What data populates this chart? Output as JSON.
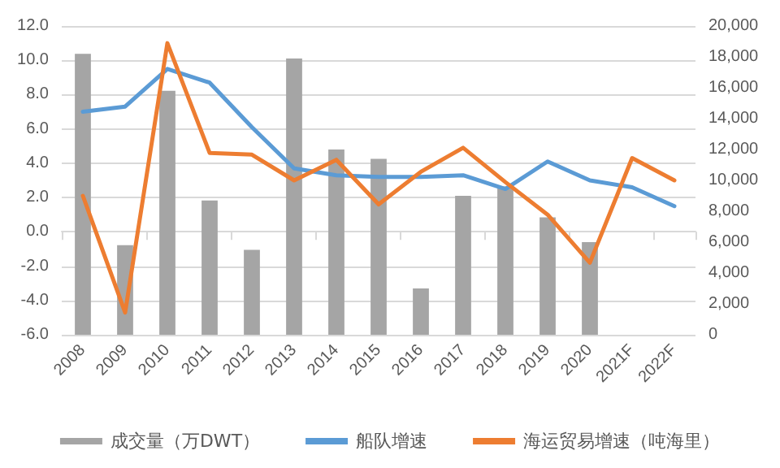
{
  "chart_data": {
    "type": "bar",
    "categories": [
      "2008",
      "2009",
      "2010",
      "2011",
      "2012",
      "2013",
      "2014",
      "2015",
      "2016",
      "2017",
      "2018",
      "2019",
      "2020",
      "2021F",
      "2022F"
    ],
    "series": [
      {
        "name": "成交量（万DWT）",
        "axis": "y2",
        "color": "#a5a5a5",
        "values": [
          18200,
          5800,
          15800,
          8700,
          5500,
          17900,
          12000,
          11400,
          3000,
          9000,
          9600,
          7600,
          6000,
          null,
          null
        ]
      },
      {
        "name": "船队增速",
        "type": "line",
        "color": "#5b9bd5",
        "values": [
          7.0,
          7.3,
          9.5,
          8.7,
          6.1,
          3.7,
          3.3,
          3.2,
          3.2,
          3.3,
          2.5,
          4.1,
          3.0,
          2.6,
          1.5
        ]
      },
      {
        "name": "海运贸易增速（吨海里）",
        "type": "line",
        "color": "#ed7d31",
        "values": [
          2.1,
          -4.7,
          11.0,
          4.6,
          4.5,
          3.0,
          4.2,
          1.6,
          3.5,
          4.9,
          2.9,
          1.0,
          -1.8,
          4.3,
          3.0
        ]
      }
    ],
    "ylim": [
      -6,
      12
    ],
    "yticks": [
      {
        "value": -6,
        "label": "-6.0"
      },
      {
        "value": -4,
        "label": "-4.0"
      },
      {
        "value": -2,
        "label": "-2.0"
      },
      {
        "value": 0,
        "label": "0.0"
      },
      {
        "value": 2,
        "label": "2.0"
      },
      {
        "value": 4,
        "label": "4.0"
      },
      {
        "value": 6,
        "label": "6.0"
      },
      {
        "value": 8,
        "label": "8.0"
      },
      {
        "value": 10,
        "label": "10.0"
      },
      {
        "value": 12,
        "label": "12.0"
      }
    ],
    "y2lim": [
      0,
      20000
    ],
    "y2ticks": [
      0,
      {
        "value": 2000,
        "label": "2,000"
      },
      {
        "value": 4000,
        "label": "4,000"
      },
      {
        "value": 6000,
        "label": "6,000"
      },
      {
        "value": 8000,
        "label": "8,000"
      },
      {
        "value": 10000,
        "label": "10,000"
      },
      {
        "value": 12000,
        "label": "12,000"
      },
      {
        "value": 14000,
        "label": "14,000"
      },
      {
        "value": 16000,
        "label": "16,000"
      },
      {
        "value": 18000,
        "label": "18,000"
      },
      {
        "value": 20000,
        "label": "20,000"
      }
    ],
    "grid": "y",
    "legend": "bottom",
    "marker": "none",
    "line_style": "solid"
  }
}
